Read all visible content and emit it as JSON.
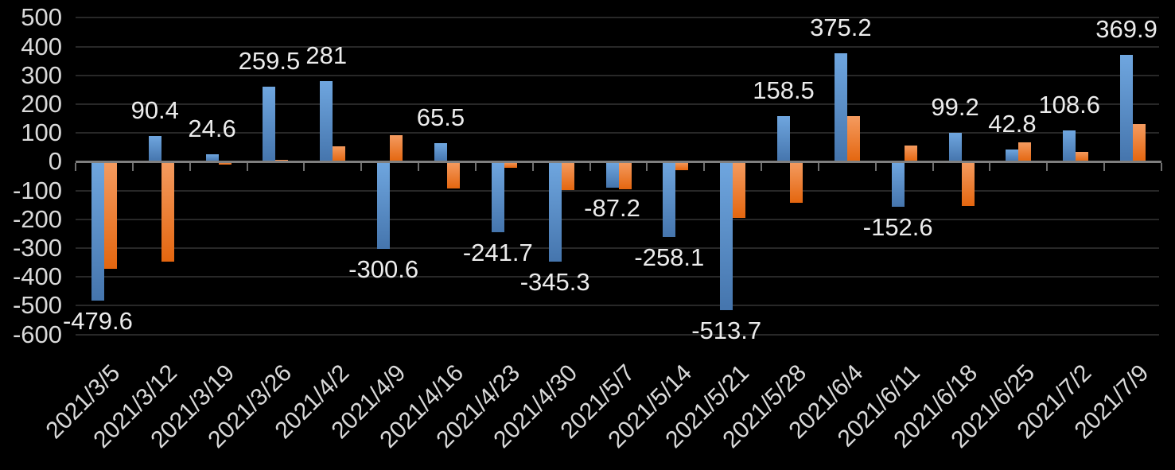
{
  "chart_data": {
    "type": "bar",
    "title": "",
    "legend": "none",
    "grid": true,
    "background": "#000000",
    "gridline_color": "#282828",
    "axis_line_color": "#7F7F7F",
    "tick_color": "#6F6F6F",
    "axis_label_color": "#D9D9D9",
    "data_label_color": "#ECECEC",
    "categories": [
      "2021/3/5",
      "2021/3/12",
      "2021/3/19",
      "2021/3/26",
      "2021/4/2",
      "2021/4/9",
      "2021/4/16",
      "2021/4/23",
      "2021/4/30",
      "2021/5/7",
      "2021/5/14",
      "2021/5/21",
      "2021/5/28",
      "2021/6/4",
      "2021/6/11",
      "2021/6/18",
      "2021/6/25",
      "2021/7/2",
      "2021/7/9"
    ],
    "series": [
      {
        "name": "blue-series",
        "base_color": "#5B9BD5",
        "gradient_top": "#6FA6DF",
        "gradient_bottom": "#4575AD",
        "values": [
          -479.6,
          90.4,
          24.6,
          259.5,
          281,
          -300.6,
          65.5,
          -241.7,
          -345.3,
          -87.2,
          -258.1,
          -513.7,
          158.5,
          375.2,
          -152.6,
          99.2,
          42.8,
          108.6,
          369.9
        ]
      },
      {
        "name": "orange-series",
        "base_color": "#ED7D31",
        "gradient_top": "#F49B60",
        "gradient_bottom": "#E4660F",
        "values": [
          -368,
          -345,
          -8,
          6,
          53,
          93,
          -90,
          -18,
          -97,
          -92,
          -26,
          -192,
          -140,
          157,
          55,
          -152,
          66,
          35,
          131
        ]
      }
    ],
    "data_labels": {
      "series": "blue-series",
      "values": [
        "-479.6",
        "90.4",
        "24.6",
        "259.5",
        "281",
        "-300.6",
        "65.5",
        "-241.7",
        "-345.3",
        "-87.2",
        "-258.1",
        "-513.7",
        "158.5",
        "375.2",
        "-152.6",
        "99.2",
        "42.8",
        "108.6",
        "369.9"
      ]
    },
    "y_axis": {
      "min": -600,
      "max": 500,
      "step": 100,
      "tick_labels": [
        "500",
        "400",
        "300",
        "200",
        "100",
        "0",
        "-100",
        "-200",
        "-300",
        "-400",
        "-500",
        "-600"
      ]
    },
    "x_axis": {
      "tick_labels": [
        "2021/3/5",
        "2021/3/12",
        "2021/3/19",
        "2021/3/26",
        "2021/4/2",
        "2021/4/9",
        "2021/4/16",
        "2021/4/23",
        "2021/4/30",
        "2021/5/7",
        "2021/5/14",
        "2021/5/21",
        "2021/5/28",
        "2021/6/4",
        "2021/6/11",
        "2021/6/18",
        "2021/6/25",
        "2021/7/2",
        "2021/7/9"
      ]
    }
  }
}
